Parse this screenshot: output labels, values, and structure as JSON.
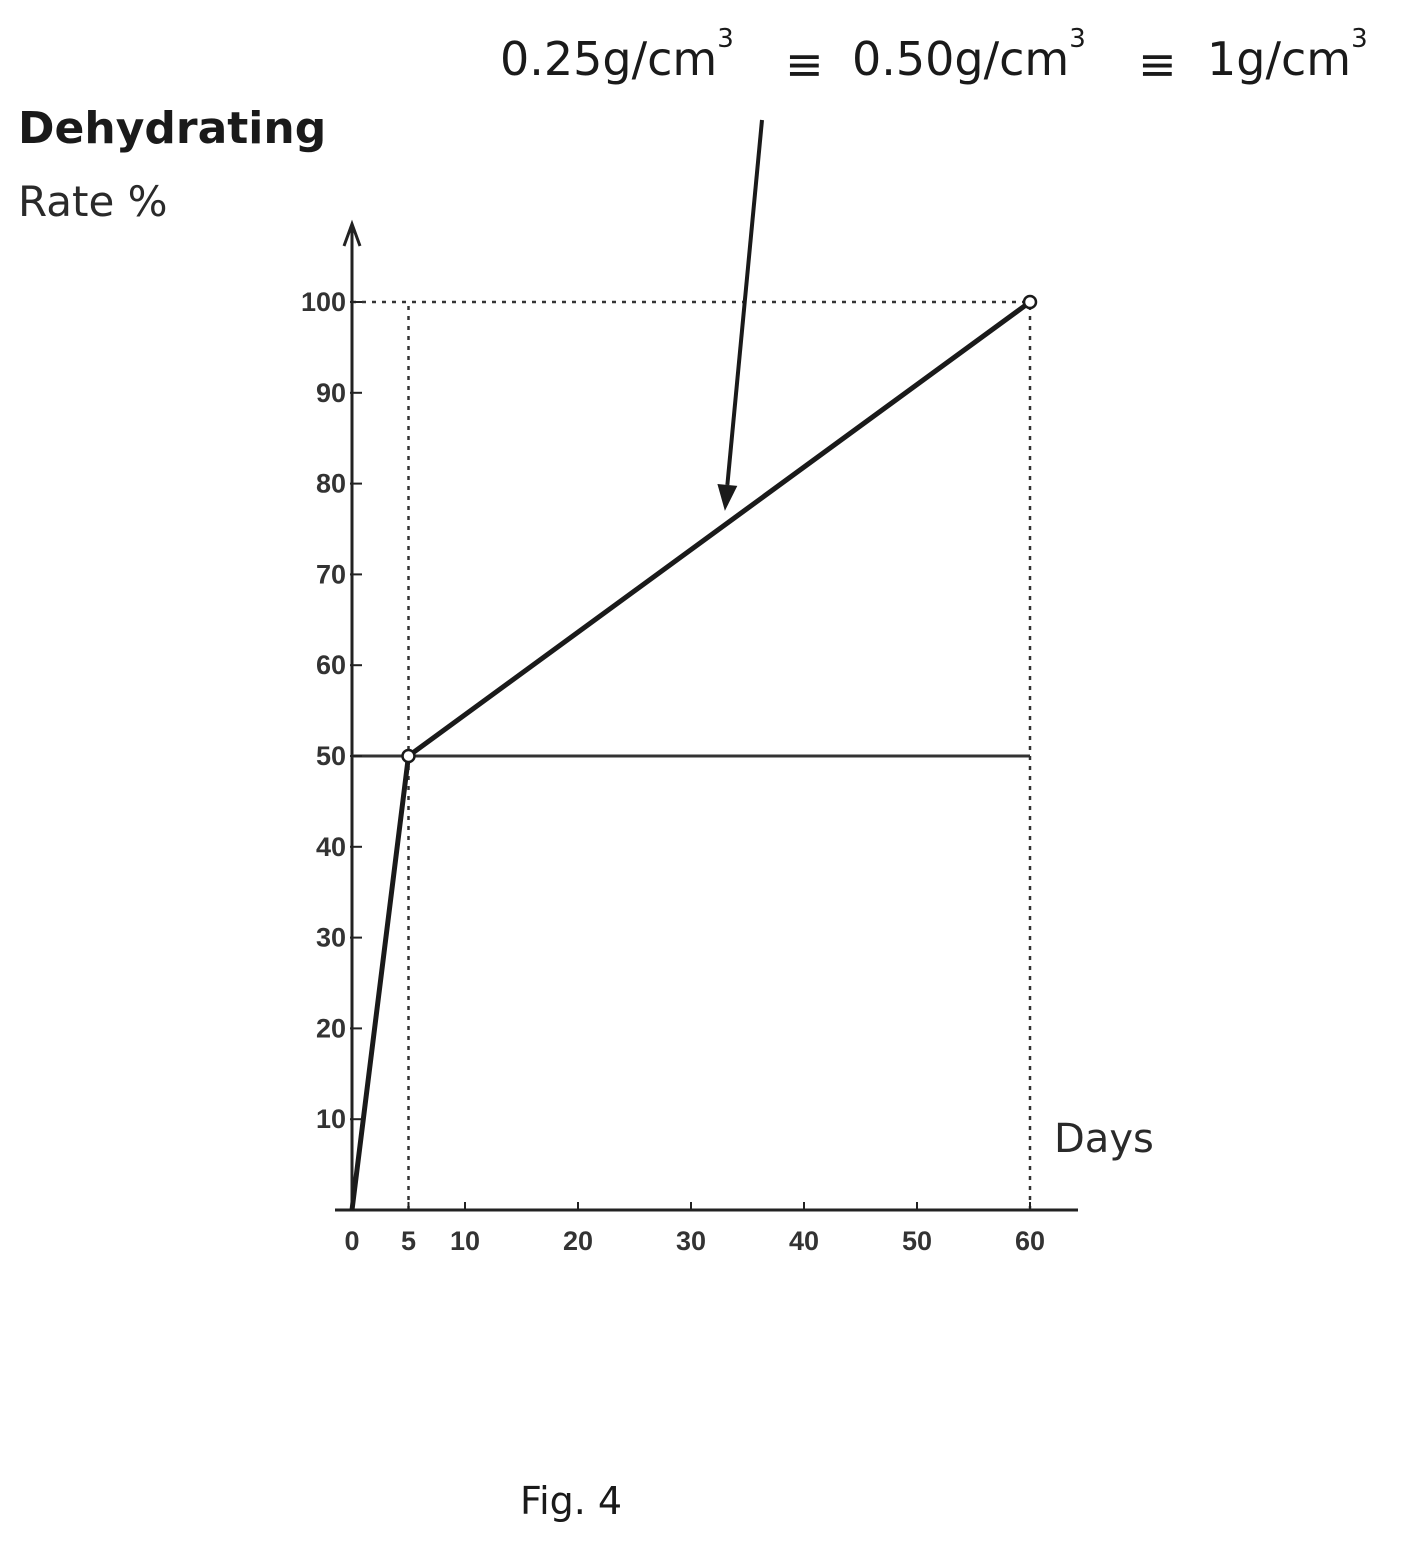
{
  "chart_data": {
    "type": "line",
    "title": "",
    "ylabel_line1": "Dehydrating",
    "ylabel_line2": "Rate %",
    "xlabel": "Days",
    "x_tick_labels": [
      "0",
      "5",
      "10",
      "20",
      "30",
      "40",
      "50",
      "60"
    ],
    "x_ticks": [
      0,
      5,
      10,
      20,
      30,
      40,
      50,
      60
    ],
    "y_ticks": [
      10,
      20,
      30,
      40,
      50,
      60,
      70,
      80,
      90,
      100
    ],
    "y_tick_labels": [
      "10",
      "20",
      "30",
      "40",
      "50",
      "60",
      "70",
      "80",
      "90",
      "100"
    ],
    "xlim": [
      0,
      60
    ],
    "ylim": [
      0,
      100
    ],
    "grid": false,
    "series": [
      {
        "x": [
          0,
          5,
          60
        ],
        "y": [
          0,
          50,
          100
        ]
      }
    ],
    "reference_lines": [
      {
        "type": "horizontal",
        "y": 100,
        "style": "dashed"
      },
      {
        "type": "horizontal",
        "y": 50,
        "style": "solid"
      },
      {
        "type": "vertical",
        "x": 5,
        "style": "dashed"
      },
      {
        "type": "vertical",
        "x": 60,
        "style": "dashed"
      }
    ],
    "annotation": {
      "parts": [
        {
          "text": "0.25g/cm",
          "sup": "3"
        },
        {
          "text": "≡"
        },
        {
          "text": "0.50g/cm",
          "sup": "3"
        },
        {
          "text": "≡"
        },
        {
          "text": "1g/cm",
          "sup": "3"
        }
      ],
      "points_to": {
        "x": 33,
        "y": 77
      }
    }
  },
  "caption": "Fig.  4"
}
